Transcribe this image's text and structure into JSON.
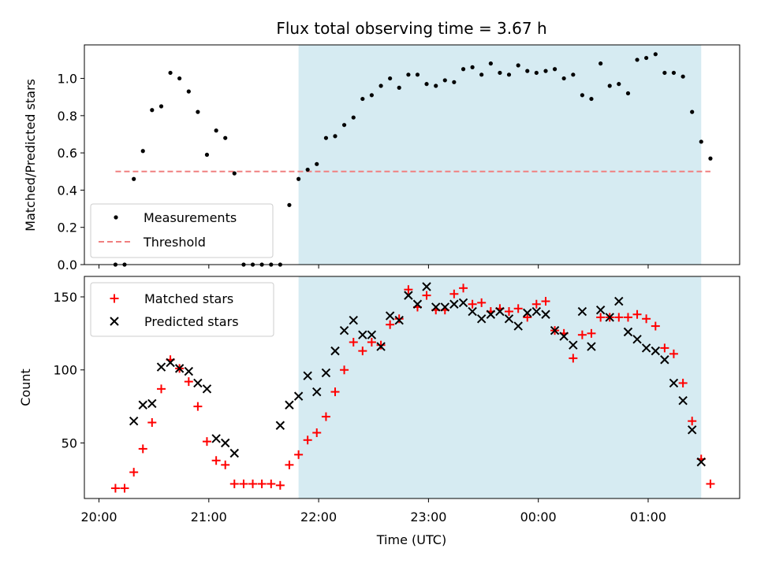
{
  "figure": {
    "title": "Flux total observing time = 3.67 h",
    "xlabel": "Time (UTC)",
    "x_tick_labels": [
      "20:00",
      "21:00",
      "22:00",
      "23:00",
      "00:00",
      "01:00"
    ]
  },
  "colors": {
    "shade": "#add8e6",
    "threshold": "#f08080",
    "matched": "#ff0000",
    "predicted": "#000000",
    "measurement": "#000000"
  },
  "chart_data": [
    {
      "type": "scatter",
      "ylabel": "Matched/Predicted stars",
      "xlim_hours": [
        19.867,
        25.833
      ],
      "ylim": [
        0,
        1.18
      ],
      "y_ticks": [
        0.0,
        0.2,
        0.4,
        0.6,
        0.8,
        1.0
      ],
      "y_tick_labels": [
        "0.0",
        "0.2",
        "0.4",
        "0.6",
        "0.8",
        "1.0"
      ],
      "shaded_span_hours": [
        21.817,
        25.483
      ],
      "threshold": {
        "name": "Threshold",
        "y": 0.5,
        "x_range_hours": [
          20.15,
          25.567
        ]
      },
      "legend_position": "lower left",
      "series": [
        {
          "name": "Measurements",
          "x_hours": [
            20.15,
            20.233,
            20.317,
            20.4,
            20.483,
            20.567,
            20.65,
            20.733,
            20.817,
            20.9,
            20.983,
            21.067,
            21.15,
            21.233,
            21.317,
            21.4,
            21.483,
            21.567,
            21.65,
            21.733,
            21.817,
            21.9,
            21.983,
            22.067,
            22.15,
            22.233,
            22.317,
            22.4,
            22.483,
            22.567,
            22.65,
            22.733,
            22.817,
            22.9,
            22.983,
            23.067,
            23.15,
            23.233,
            23.317,
            23.4,
            23.483,
            23.567,
            23.65,
            23.733,
            23.817,
            23.9,
            23.983,
            24.067,
            24.15,
            24.233,
            24.317,
            24.4,
            24.483,
            24.567,
            24.65,
            24.733,
            24.817,
            24.9,
            24.983,
            25.067,
            25.15,
            25.233,
            25.317,
            25.4,
            25.483,
            25.567
          ],
          "values": [
            0.0,
            0.0,
            0.46,
            0.61,
            0.83,
            0.85,
            1.03,
            1.0,
            0.93,
            0.82,
            0.59,
            0.72,
            0.68,
            0.49,
            0.0,
            0.0,
            0.0,
            0.0,
            0.0,
            0.32,
            0.46,
            0.51,
            0.54,
            0.68,
            0.69,
            0.75,
            0.79,
            0.89,
            0.91,
            0.96,
            1.0,
            0.95,
            1.02,
            1.02,
            0.97,
            0.96,
            0.99,
            0.98,
            1.05,
            1.06,
            1.02,
            1.08,
            1.03,
            1.02,
            1.07,
            1.04,
            1.03,
            1.04,
            1.05,
            1.0,
            1.02,
            0.91,
            0.89,
            1.08,
            0.96,
            0.97,
            0.92,
            1.1,
            1.11,
            1.13,
            1.03,
            1.03,
            1.01,
            0.82,
            0.66,
            0.57
          ]
        }
      ]
    },
    {
      "type": "scatter",
      "ylabel": "Count",
      "xlim_hours": [
        19.867,
        25.833
      ],
      "ylim": [
        12,
        164
      ],
      "y_ticks": [
        50,
        100,
        150
      ],
      "y_tick_labels": [
        "50",
        "100",
        "150"
      ],
      "shaded_span_hours": [
        21.817,
        25.483
      ],
      "legend_position": "upper left",
      "series": [
        {
          "name": "Matched stars",
          "x_hours": [
            20.15,
            20.233,
            20.317,
            20.4,
            20.483,
            20.567,
            20.65,
            20.733,
            20.817,
            20.9,
            20.983,
            21.067,
            21.15,
            21.233,
            21.317,
            21.4,
            21.483,
            21.567,
            21.65,
            21.733,
            21.817,
            21.9,
            21.983,
            22.067,
            22.15,
            22.233,
            22.317,
            22.4,
            22.483,
            22.567,
            22.65,
            22.733,
            22.817,
            22.9,
            22.983,
            23.067,
            23.15,
            23.233,
            23.317,
            23.4,
            23.483,
            23.567,
            23.65,
            23.733,
            23.817,
            23.9,
            23.983,
            24.067,
            24.15,
            24.233,
            24.317,
            24.4,
            24.483,
            24.567,
            24.65,
            24.733,
            24.817,
            24.9,
            24.983,
            25.067,
            25.15,
            25.233,
            25.317,
            25.4,
            25.483,
            25.567
          ],
          "values": [
            19,
            19,
            30,
            46,
            64,
            87,
            107,
            101,
            92,
            75,
            51,
            38,
            35,
            22,
            22,
            22,
            22,
            22,
            21,
            35,
            42,
            52,
            57,
            68,
            85,
            100,
            119,
            113,
            119,
            117,
            131,
            135,
            155,
            143,
            151,
            141,
            141,
            152,
            156,
            145,
            146,
            140,
            142,
            140,
            142,
            136,
            145,
            147,
            127,
            125,
            108,
            124,
            125,
            136,
            136,
            136,
            136,
            138,
            135,
            130,
            115,
            111,
            91,
            65,
            39,
            22
          ]
        },
        {
          "name": "Predicted stars",
          "x_hours": [
            20.317,
            20.4,
            20.483,
            20.567,
            20.65,
            20.733,
            20.817,
            20.9,
            20.983,
            21.067,
            21.15,
            21.233,
            21.65,
            21.733,
            21.817,
            21.9,
            21.983,
            22.067,
            22.15,
            22.233,
            22.317,
            22.4,
            22.483,
            22.567,
            22.65,
            22.733,
            22.817,
            22.9,
            22.983,
            23.067,
            23.15,
            23.233,
            23.317,
            23.4,
            23.483,
            23.567,
            23.65,
            23.733,
            23.817,
            23.9,
            23.983,
            24.067,
            24.15,
            24.233,
            24.317,
            24.4,
            24.483,
            24.567,
            24.65,
            24.733,
            24.817,
            24.9,
            24.983,
            25.067,
            25.15,
            25.233,
            25.317,
            25.4,
            25.483
          ],
          "values": [
            65,
            76,
            77,
            102,
            105,
            101,
            99,
            91,
            87,
            53,
            50,
            43,
            62,
            76,
            82,
            96,
            85,
            98,
            113,
            127,
            134,
            124,
            124,
            116,
            137,
            134,
            151,
            145,
            157,
            143,
            143,
            145,
            146,
            140,
            135,
            138,
            140,
            135,
            130,
            139,
            140,
            138,
            127,
            123,
            117,
            140,
            116,
            141,
            136,
            147,
            126,
            121,
            115,
            113,
            107,
            91,
            79,
            59,
            37
          ]
        }
      ]
    }
  ]
}
